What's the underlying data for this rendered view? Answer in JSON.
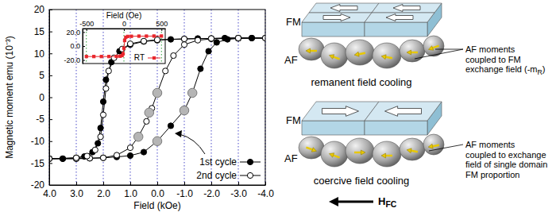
{
  "chart_data": [
    {
      "type": "line",
      "x_label": "Field (kOe)",
      "y_label": "Magnetic moment emu (10⁻³)",
      "xlim": [
        4,
        -4
      ],
      "xticks": [
        {
          "value": 4,
          "label": "4.0"
        },
        {
          "value": 3,
          "label": "3.0"
        },
        {
          "value": 2,
          "label": "2.0"
        },
        {
          "value": 1,
          "label": "1.0"
        },
        {
          "value": 0,
          "label": "0.0"
        },
        {
          "value": -1,
          "label": "-1.0"
        },
        {
          "value": -2,
          "label": "-2.0"
        },
        {
          "value": -3,
          "label": "-3.0"
        },
        {
          "value": -4,
          "label": "-4.0"
        }
      ],
      "ylim": [
        -20,
        20
      ],
      "yticks": [
        -20,
        -15,
        -10,
        -5,
        0,
        5,
        10,
        15,
        20
      ],
      "grid": "x",
      "legend": "lower right",
      "series": [
        {
          "name": "1st cycle",
          "color": "#000000",
          "marker": "circle",
          "line_style": "solid",
          "x": [
            4,
            3.5,
            3,
            2.5,
            2,
            1.5,
            1,
            0.5,
            0,
            -0.5,
            -1,
            -1.3,
            -1.6,
            -1.9,
            -2.2,
            -2.6,
            -3,
            -3.5,
            -4,
            -3.5,
            -3,
            -2.5,
            -2,
            -1.5,
            -1,
            -0.5,
            0,
            0.5,
            1,
            1.4,
            1.7,
            1.9,
            2,
            2.1,
            2.2,
            2.4,
            2.7,
            3,
            3.5,
            4
          ],
          "values": [
            -14,
            -14,
            -14,
            -13.9,
            -13.8,
            -13.6,
            -13.3,
            -12.5,
            -10,
            -6.5,
            -3,
            1,
            6.5,
            10.5,
            12.5,
            13.2,
            13.4,
            13.5,
            13.5,
            13.5,
            13.5,
            13.5,
            13.4,
            13.4,
            13.3,
            13.2,
            13,
            12.7,
            12,
            10.5,
            8,
            4,
            -1,
            -7,
            -10.5,
            -12.5,
            -13.5,
            -13.8,
            -14,
            -14
          ]
        },
        {
          "name": "2nd cycle",
          "color": "#000000",
          "marker": "open-circle",
          "line_style": "solid",
          "x": [
            4,
            3,
            2.5,
            2,
            1.5,
            1,
            0.7,
            0.4,
            0.2,
            0,
            -0.3,
            -0.6,
            -1,
            -1.5,
            -2,
            -3,
            -4,
            -3,
            -2,
            -1,
            0,
            0.5,
            1,
            1.3,
            1.6,
            1.8,
            1.9,
            2,
            2.1,
            2.3,
            2.6,
            3,
            4
          ],
          "values": [
            -14,
            -14,
            -13.9,
            -13.8,
            -13.2,
            -11.5,
            -9,
            -5.5,
            -2.5,
            1,
            6,
            9.5,
            12,
            13,
            13.3,
            13.5,
            13.5,
            13.5,
            13.4,
            13.3,
            13.1,
            12.8,
            12.2,
            11,
            9,
            6,
            2,
            -4,
            -9,
            -12,
            -13.4,
            -13.8,
            -14
          ]
        },
        {
          "color": "#b5b5b5",
          "marker": "circle",
          "line_style": "none",
          "x": [
            0.7,
            0.3,
            0,
            0,
            -1,
            -1.3
          ],
          "values": [
            -9,
            -3.5,
            1,
            -10,
            -3,
            1
          ]
        }
      ]
    },
    {
      "type": "line",
      "x_label": "Field (Oe)",
      "xlim": [
        -550,
        550
      ],
      "xticks": [
        -500,
        0,
        500
      ],
      "ylim": [
        -25,
        25
      ],
      "yticks": [
        {
          "value": 20,
          "label": "20.0"
        },
        {
          "value": 0,
          "label": "0.0"
        },
        {
          "value": -20,
          "label": "-20.0"
        }
      ],
      "grid": "x",
      "legend": "lower right",
      "series": [
        {
          "name": "RT",
          "color": "#e8262c",
          "marker": "square",
          "line_style": "solid",
          "x": [
            -500,
            -400,
            -300,
            -200,
            -100,
            -50,
            -25,
            -10,
            0,
            10,
            25,
            50,
            100,
            200,
            300,
            400,
            500
          ],
          "values": [
            -15,
            -15,
            -15,
            -15,
            -14.8,
            -14.5,
            -13.5,
            -11,
            -3,
            8,
            12.5,
            13.8,
            14,
            14.2,
            14.2,
            14.3,
            14.3
          ]
        }
      ]
    }
  ],
  "diagram": {
    "panels": [
      {
        "fm_label": "FM",
        "af_label": "AF",
        "caption": "remanent field cooling",
        "note": [
          "AF moments",
          "coupled to FM",
          {
            "text": "exchange field (-m",
            "sub": "R",
            "after": ")"
          }
        ]
      },
      {
        "fm_label": "FM",
        "af_label": "AF",
        "caption": "coercive field cooling",
        "note": [
          "AF moments",
          "coupled to exchange",
          "field of single domain",
          "FM proportion"
        ]
      }
    ],
    "field_label": {
      "text": "H",
      "sub": "FC"
    }
  }
}
